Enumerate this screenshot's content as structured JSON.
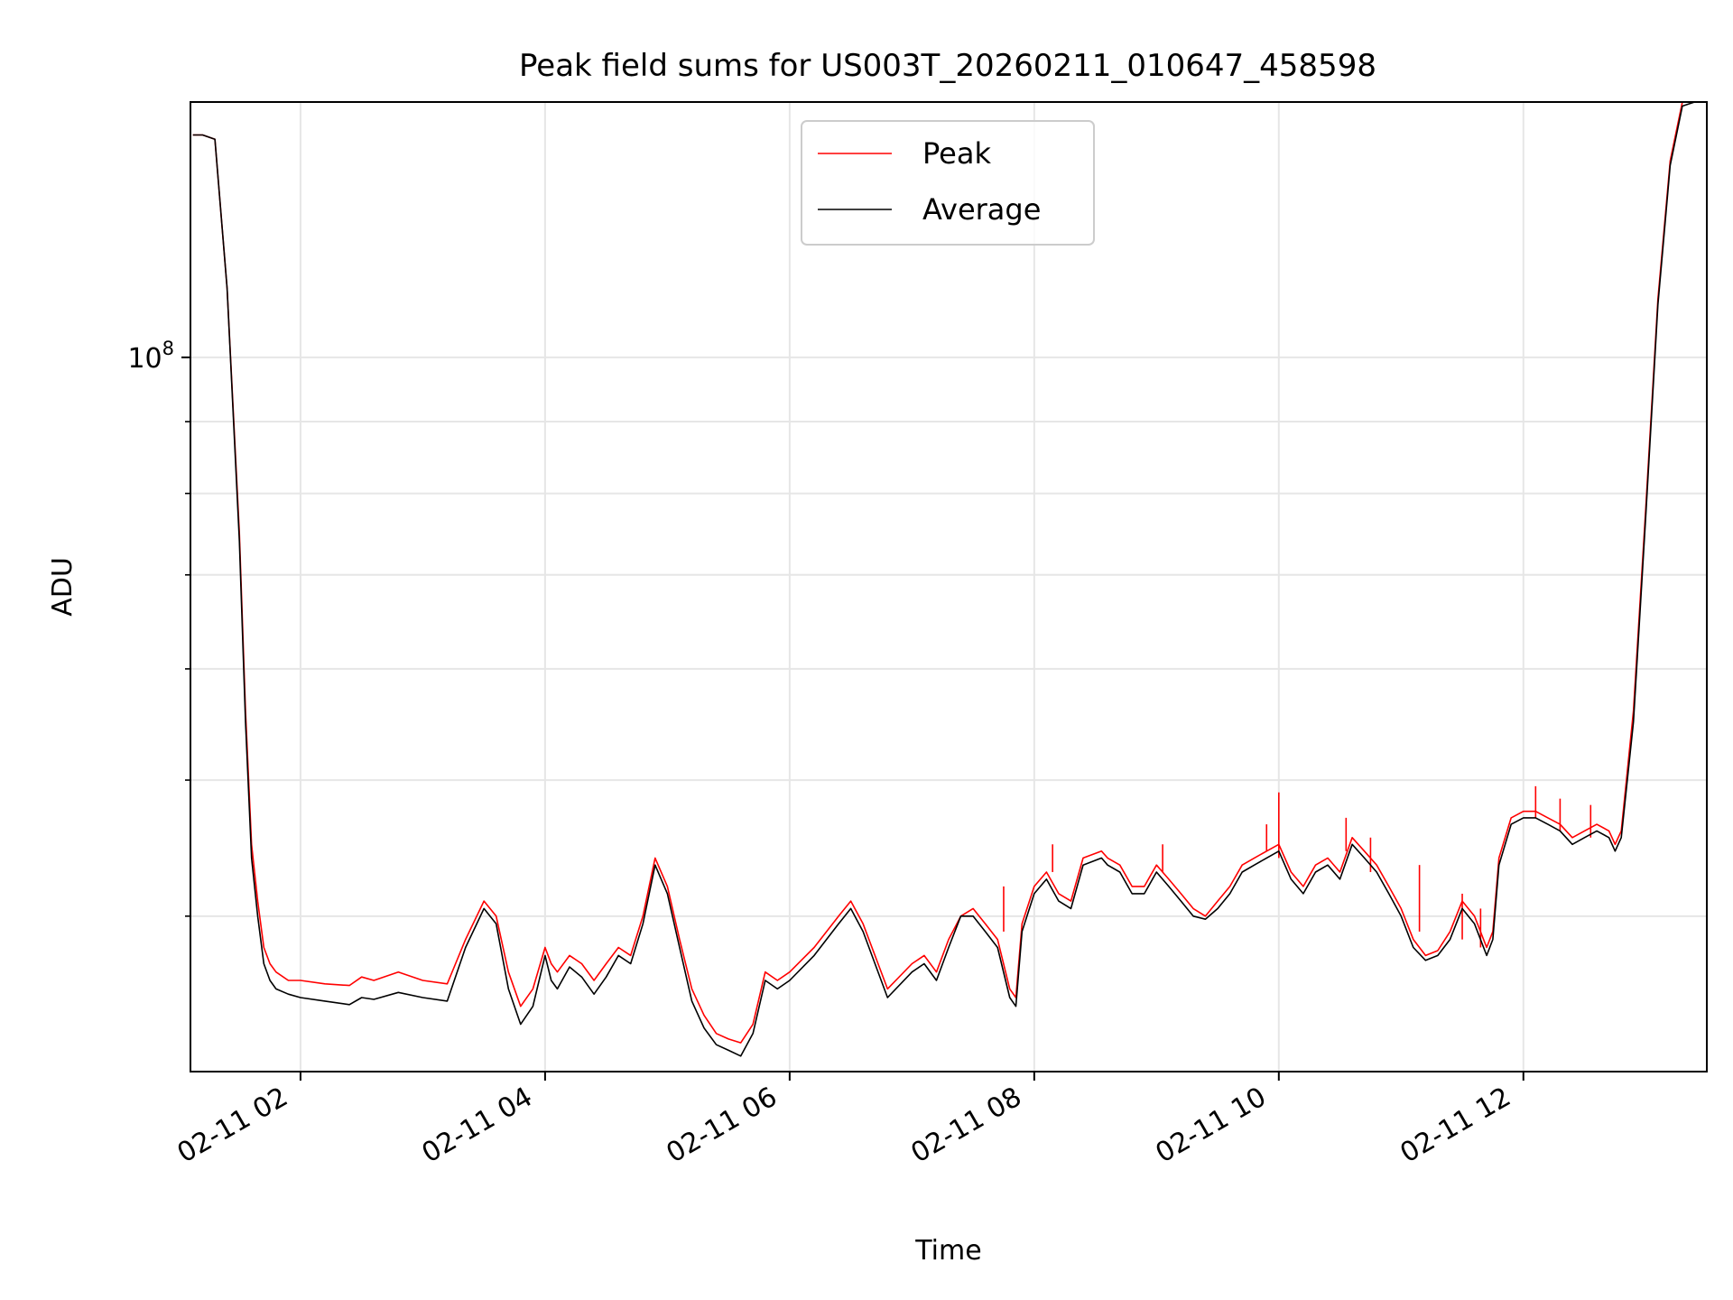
{
  "chart_data": {
    "type": "line",
    "title": "Peak field sums for US003T_20260211_010647_458598",
    "xlabel": "Time",
    "ylabel": "ADU",
    "yscale": "log",
    "xlim": [
      1.1,
      13.5
    ],
    "ylim": [
      31000000,
      152000000
    ],
    "grid": true,
    "legend_position": "top-center",
    "x_ticks": [
      {
        "value": 2,
        "label": "02-11 02"
      },
      {
        "value": 4,
        "label": "02-11 04"
      },
      {
        "value": 6,
        "label": "02-11 06"
      },
      {
        "value": 8,
        "label": "02-11 08"
      },
      {
        "value": 10,
        "label": "02-11 10"
      },
      {
        "value": 12,
        "label": "02-11 12"
      }
    ],
    "y_major_tick": {
      "value": 100000000,
      "label_base": "10",
      "label_exp": "8"
    },
    "y_minor_ticks": [
      40000000,
      50000000,
      60000000,
      70000000,
      80000000,
      90000000
    ],
    "series": [
      {
        "name": "Peak",
        "color": "#ff0000",
        "x": [
          1.12,
          1.2,
          1.3,
          1.4,
          1.5,
          1.55,
          1.6,
          1.65,
          1.7,
          1.75,
          1.8,
          1.9,
          2.0,
          2.2,
          2.4,
          2.5,
          2.6,
          2.8,
          3.0,
          3.2,
          3.35,
          3.5,
          3.6,
          3.7,
          3.8,
          3.9,
          4.0,
          4.05,
          4.1,
          4.2,
          4.3,
          4.4,
          4.5,
          4.6,
          4.7,
          4.8,
          4.9,
          5.0,
          5.1,
          5.2,
          5.3,
          5.4,
          5.5,
          5.6,
          5.7,
          5.8,
          5.9,
          6.0,
          6.2,
          6.4,
          6.5,
          6.6,
          6.8,
          7.0,
          7.1,
          7.2,
          7.3,
          7.4,
          7.5,
          7.6,
          7.7,
          7.8,
          7.85,
          7.9,
          8.0,
          8.1,
          8.2,
          8.3,
          8.4,
          8.55,
          8.6,
          8.7,
          8.8,
          8.9,
          9.0,
          9.1,
          9.2,
          9.3,
          9.4,
          9.5,
          9.6,
          9.7,
          9.8,
          9.9,
          10.0,
          10.1,
          10.2,
          10.3,
          10.4,
          10.5,
          10.6,
          10.7,
          10.8,
          10.9,
          11.0,
          11.1,
          11.2,
          11.3,
          11.4,
          11.5,
          11.6,
          11.7,
          11.75,
          11.8,
          11.9,
          12.0,
          12.1,
          12.2,
          12.3,
          12.4,
          12.5,
          12.6,
          12.7,
          12.75,
          12.8,
          12.9,
          13.0,
          13.1,
          13.2,
          13.3,
          13.4,
          13.5
        ],
        "values": [
          144000000,
          144000000,
          143000000,
          112000000,
          75000000,
          56000000,
          45000000,
          41000000,
          38000000,
          37000000,
          36500000,
          36000000,
          36000000,
          35800000,
          35700000,
          36200000,
          36000000,
          36500000,
          36000000,
          35800000,
          38500000,
          41000000,
          40000000,
          36500000,
          34500000,
          35500000,
          38000000,
          37000000,
          36500000,
          37500000,
          37000000,
          36000000,
          37000000,
          38000000,
          37500000,
          40000000,
          44000000,
          42000000,
          38500000,
          35500000,
          34000000,
          33000000,
          32700000,
          32500000,
          33500000,
          36500000,
          36000000,
          36500000,
          38000000,
          40000000,
          41000000,
          39500000,
          35500000,
          37000000,
          37500000,
          36500000,
          38500000,
          40000000,
          40500000,
          39500000,
          38500000,
          35500000,
          35000000,
          39500000,
          42000000,
          43000000,
          41500000,
          41000000,
          44000000,
          44500000,
          44000000,
          43500000,
          42000000,
          42000000,
          43500000,
          42500000,
          41500000,
          40500000,
          40000000,
          41000000,
          42000000,
          43500000,
          44000000,
          44500000,
          45000000,
          43000000,
          42000000,
          43500000,
          44000000,
          43000000,
          45500000,
          44500000,
          43500000,
          42000000,
          40500000,
          38500000,
          37500000,
          37800000,
          39000000,
          41000000,
          40000000,
          38000000,
          39000000,
          44000000,
          47000000,
          47500000,
          47500000,
          47000000,
          46500000,
          45500000,
          46000000,
          46500000,
          46000000,
          45000000,
          46000000,
          56000000,
          78000000,
          110000000,
          138000000,
          152000000,
          153000000,
          153000000
        ],
        "spikes": [
          {
            "x": 7.75,
            "values": [
              39000000,
              42000000
            ]
          },
          {
            "x": 8.15,
            "values": [
              43000000,
              45000000
            ]
          },
          {
            "x": 9.05,
            "values": [
              43000000,
              45000000
            ]
          },
          {
            "x": 9.9,
            "values": [
              44500000,
              46500000
            ]
          },
          {
            "x": 10.0,
            "values": [
              44000000,
              49000000
            ]
          },
          {
            "x": 10.55,
            "values": [
              44500000,
              47000000
            ]
          },
          {
            "x": 10.75,
            "values": [
              43000000,
              45500000
            ]
          },
          {
            "x": 11.15,
            "values": [
              39000000,
              43500000
            ]
          },
          {
            "x": 11.5,
            "values": [
              38500000,
              41500000
            ]
          },
          {
            "x": 11.65,
            "values": [
              38000000,
              40500000
            ]
          },
          {
            "x": 12.1,
            "values": [
              47000000,
              49500000
            ]
          },
          {
            "x": 12.3,
            "values": [
              46000000,
              48500000
            ]
          },
          {
            "x": 12.55,
            "values": [
              45500000,
              48000000
            ]
          }
        ]
      },
      {
        "name": "Average",
        "color": "#000000",
        "x": [
          1.12,
          1.2,
          1.3,
          1.4,
          1.5,
          1.55,
          1.6,
          1.65,
          1.7,
          1.75,
          1.8,
          1.9,
          2.0,
          2.2,
          2.4,
          2.5,
          2.6,
          2.8,
          3.0,
          3.2,
          3.35,
          3.5,
          3.6,
          3.7,
          3.8,
          3.9,
          4.0,
          4.05,
          4.1,
          4.2,
          4.3,
          4.4,
          4.5,
          4.6,
          4.7,
          4.8,
          4.9,
          5.0,
          5.1,
          5.2,
          5.3,
          5.4,
          5.5,
          5.6,
          5.7,
          5.8,
          5.9,
          6.0,
          6.2,
          6.4,
          6.5,
          6.6,
          6.8,
          7.0,
          7.1,
          7.2,
          7.3,
          7.4,
          7.5,
          7.6,
          7.7,
          7.8,
          7.85,
          7.9,
          8.0,
          8.1,
          8.2,
          8.3,
          8.4,
          8.55,
          8.6,
          8.7,
          8.8,
          8.9,
          9.0,
          9.1,
          9.2,
          9.3,
          9.4,
          9.5,
          9.6,
          9.7,
          9.8,
          9.9,
          10.0,
          10.1,
          10.2,
          10.3,
          10.4,
          10.5,
          10.6,
          10.7,
          10.8,
          10.9,
          11.0,
          11.1,
          11.2,
          11.3,
          11.4,
          11.5,
          11.6,
          11.7,
          11.75,
          11.8,
          11.9,
          12.0,
          12.1,
          12.2,
          12.3,
          12.4,
          12.5,
          12.6,
          12.7,
          12.75,
          12.8,
          12.9,
          13.0,
          13.1,
          13.2,
          13.3,
          13.4,
          13.5
        ],
        "values": [
          144000000,
          144000000,
          143000000,
          112000000,
          74000000,
          55000000,
          44000000,
          40000000,
          37000000,
          36000000,
          35500000,
          35200000,
          35000000,
          34800000,
          34600000,
          35000000,
          34900000,
          35300000,
          35000000,
          34800000,
          38000000,
          40500000,
          39500000,
          35500000,
          33500000,
          34500000,
          37500000,
          36000000,
          35500000,
          36800000,
          36200000,
          35200000,
          36200000,
          37500000,
          37000000,
          39500000,
          43500000,
          41500000,
          38000000,
          34800000,
          33300000,
          32400000,
          32100000,
          31800000,
          33000000,
          36000000,
          35500000,
          36000000,
          37500000,
          39500000,
          40500000,
          39000000,
          35000000,
          36500000,
          37000000,
          36000000,
          38000000,
          40000000,
          40000000,
          39000000,
          38000000,
          35000000,
          34500000,
          39000000,
          41500000,
          42500000,
          41000000,
          40500000,
          43500000,
          44000000,
          43500000,
          43000000,
          41500000,
          41500000,
          43000000,
          42000000,
          41000000,
          40000000,
          39800000,
          40500000,
          41500000,
          43000000,
          43500000,
          44000000,
          44500000,
          42500000,
          41500000,
          43000000,
          43500000,
          42500000,
          45000000,
          44000000,
          43000000,
          41500000,
          40000000,
          38000000,
          37200000,
          37500000,
          38500000,
          40500000,
          39500000,
          37500000,
          38500000,
          43500000,
          46500000,
          47000000,
          47000000,
          46500000,
          46000000,
          45000000,
          45500000,
          46000000,
          45500000,
          44500000,
          45500000,
          55000000,
          77000000,
          109000000,
          137000000,
          151000000,
          152000000,
          152000000
        ]
      }
    ]
  }
}
